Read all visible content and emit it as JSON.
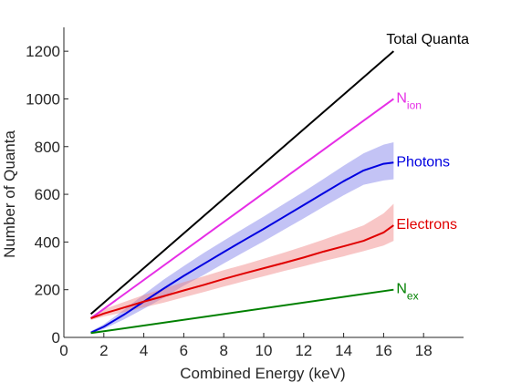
{
  "chart_data": {
    "type": "line",
    "title": "",
    "xlabel": "Combined Energy (keV)",
    "ylabel": "Number of Quanta",
    "xlim": [
      0,
      20
    ],
    "ylim": [
      0,
      1300
    ],
    "x_ticks": [
      0,
      2,
      4,
      6,
      8,
      10,
      12,
      14,
      16,
      18
    ],
    "y_ticks": [
      0,
      200,
      400,
      600,
      800,
      1000,
      1200
    ],
    "grid": false,
    "legend": "none",
    "series": [
      {
        "name": "Total Quanta",
        "label_main": "Total Quanta",
        "label_sub": "",
        "color": "#000000",
        "x": [
          1.35,
          16.5
        ],
        "y": [
          98,
          1200
        ]
      },
      {
        "name": "Nion",
        "label_main": "N",
        "label_sub": "ion",
        "color": "#e62ee6",
        "x": [
          1.35,
          16.5
        ],
        "y": [
          80,
          1000
        ]
      },
      {
        "name": "Photons",
        "label_main": "Photons",
        "label_sub": "",
        "color": "#0000e0",
        "band_color": "#7b7be8",
        "x": [
          1.35,
          2,
          3,
          4,
          5,
          6,
          7,
          8,
          9,
          10,
          11,
          12,
          13,
          14,
          15,
          16,
          16.5
        ],
        "y": [
          20,
          45,
          95,
          150,
          205,
          258,
          308,
          358,
          407,
          455,
          505,
          555,
          605,
          655,
          700,
          728,
          733
        ],
        "band_low": [
          15,
          36,
          75,
          120,
          167,
          217,
          262,
          310,
          357,
          403,
          451,
          499,
          548,
          596,
          640,
          658,
          663
        ],
        "band_high": [
          26,
          55,
          115,
          180,
          243,
          299,
          354,
          406,
          457,
          507,
          559,
          611,
          665,
          720,
          772,
          808,
          818
        ]
      },
      {
        "name": "Electrons",
        "label_main": "Electrons",
        "label_sub": "",
        "color": "#e00000",
        "band_color": "#f08080",
        "x": [
          1.35,
          2,
          3,
          4,
          5,
          6,
          7,
          8,
          9,
          10,
          11,
          12,
          13,
          14,
          15,
          16,
          16.5
        ],
        "y": [
          80,
          100,
          125,
          150,
          173,
          197,
          220,
          245,
          268,
          290,
          312,
          335,
          360,
          382,
          405,
          440,
          470
        ],
        "band_low": [
          73,
          88,
          105,
          126,
          146,
          168,
          190,
          213,
          235,
          256,
          278,
          298,
          320,
          340,
          362,
          385,
          405
        ],
        "band_high": [
          88,
          118,
          148,
          178,
          205,
          232,
          256,
          282,
          305,
          330,
          355,
          382,
          410,
          440,
          470,
          520,
          560
        ]
      },
      {
        "name": "Nex",
        "label_main": "N",
        "label_sub": "ex",
        "color": "#008000",
        "x": [
          1.35,
          16.5
        ],
        "y": [
          18,
          200
        ]
      }
    ]
  }
}
